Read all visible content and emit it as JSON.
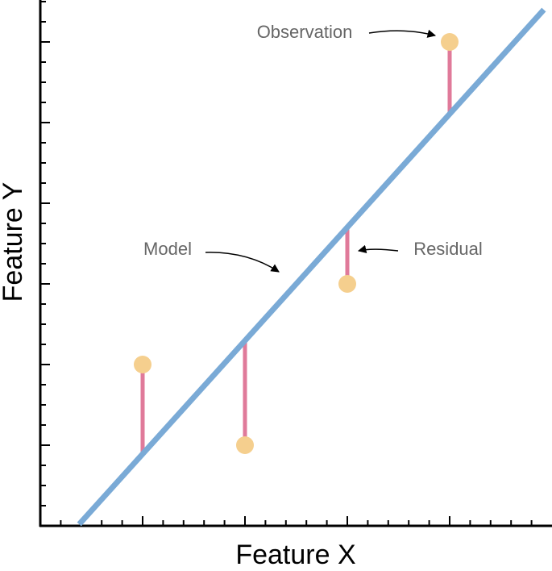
{
  "chart_data": {
    "type": "scatter",
    "x_label": "Feature X",
    "y_label": "Feature Y",
    "xlim": [
      0,
      5
    ],
    "ylim": [
      0,
      6.52
    ],
    "xticks": [
      1,
      2,
      3,
      4
    ],
    "xminorticks": [
      0.2,
      0.4,
      0.6,
      0.8,
      1.2,
      1.4,
      1.6,
      1.8,
      2.2,
      2.4,
      2.6,
      2.8,
      3.2,
      3.4,
      3.6,
      3.8,
      4.2,
      4.4,
      4.6,
      4.8
    ],
    "yticks": [
      1,
      2,
      3,
      4,
      5,
      6
    ],
    "yminorticks": [
      0.25,
      0.5,
      0.75,
      1.25,
      1.5,
      1.75,
      2.25,
      2.5,
      2.75,
      3.25,
      3.5,
      3.75,
      4.25,
      4.5,
      4.75,
      5.25,
      5.5,
      5.75,
      6.25,
      6.5
    ],
    "x": [
      1,
      2,
      3,
      4
    ],
    "y": [
      2,
      1,
      3,
      6
    ],
    "color": "#f5cf8e",
    "fit": {
      "x": [
        0.38,
        4.92
      ],
      "y": [
        0.02,
        6.4
      ],
      "color": "#7aaad6"
    },
    "residual_color": "#e07a9a",
    "annotations": {
      "observation": "Observation",
      "model": "Model",
      "residual": "Residual"
    }
  }
}
